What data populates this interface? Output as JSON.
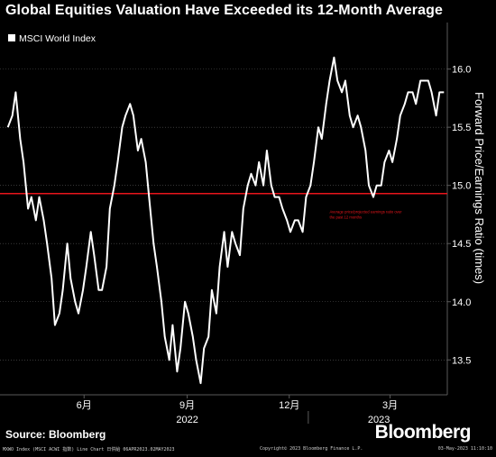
{
  "title": "Global Equities Valuation Have Exceeded its 12-Month Average",
  "source": "Source: Bloomberg",
  "brand": "Bloomberg",
  "footer": {
    "left": "MXWO Index (MSCI ACWI 指数) Line Chart 日供給 06APR2023.02MAY2023",
    "middle": "Copyright© 2023 Bloomberg Finance L.P.",
    "right": "03-May-2023 11:10:10"
  },
  "colors": {
    "background": "#000000",
    "line": "#ffffff",
    "average": "#e8151b",
    "grid": "#5a5a5a"
  },
  "chart_data": {
    "type": "line",
    "legend": {
      "position": "top-left"
    },
    "series": [
      {
        "name": "MSCI World Index",
        "x": [
          "2022-04-08",
          "2022-04-12",
          "2022-04-15",
          "2022-04-19",
          "2022-04-22",
          "2022-04-26",
          "2022-04-29",
          "2022-05-03",
          "2022-05-06",
          "2022-05-10",
          "2022-05-13",
          "2022-05-17",
          "2022-05-20",
          "2022-05-24",
          "2022-05-27",
          "2022-05-31",
          "2022-06-03",
          "2022-06-07",
          "2022-06-10",
          "2022-06-14",
          "2022-06-17",
          "2022-06-21",
          "2022-06-24",
          "2022-06-28",
          "2022-07-01",
          "2022-07-05",
          "2022-07-08",
          "2022-07-12",
          "2022-07-15",
          "2022-07-19",
          "2022-07-22",
          "2022-07-26",
          "2022-07-29",
          "2022-08-02",
          "2022-08-05",
          "2022-08-09",
          "2022-08-12",
          "2022-08-16",
          "2022-08-19",
          "2022-08-23",
          "2022-08-26",
          "2022-08-30",
          "2022-09-02",
          "2022-09-06",
          "2022-09-09",
          "2022-09-13",
          "2022-09-16",
          "2022-09-20",
          "2022-09-23",
          "2022-09-27",
          "2022-09-30",
          "2022-10-04",
          "2022-10-07",
          "2022-10-11",
          "2022-10-14",
          "2022-10-18",
          "2022-10-21",
          "2022-10-25",
          "2022-10-28",
          "2022-11-01",
          "2022-11-04",
          "2022-11-08",
          "2022-11-11",
          "2022-11-15",
          "2022-11-18",
          "2022-11-22",
          "2022-11-25",
          "2022-11-29",
          "2022-12-02",
          "2022-12-06",
          "2022-12-09",
          "2022-12-13",
          "2022-12-16",
          "2022-12-20",
          "2022-12-23",
          "2022-12-27",
          "2022-12-30",
          "2023-01-03",
          "2023-01-06",
          "2023-01-10",
          "2023-01-13",
          "2023-01-17",
          "2023-01-20",
          "2023-01-24",
          "2023-01-27",
          "2023-01-31",
          "2023-02-03",
          "2023-02-07",
          "2023-02-10",
          "2023-02-14",
          "2023-02-17",
          "2023-02-21",
          "2023-02-24",
          "2023-02-28",
          "2023-03-03",
          "2023-03-07",
          "2023-03-10",
          "2023-03-14",
          "2023-03-17",
          "2023-03-21",
          "2023-03-24",
          "2023-03-28",
          "2023-03-31",
          "2023-04-04",
          "2023-04-07",
          "2023-04-11",
          "2023-04-14",
          "2023-04-18",
          "2023-04-21",
          "2023-04-25",
          "2023-04-28",
          "2023-05-02"
        ],
        "values": [
          15.5,
          15.6,
          15.8,
          15.4,
          15.2,
          14.8,
          14.9,
          14.7,
          14.9,
          14.7,
          14.5,
          14.2,
          13.8,
          13.9,
          14.1,
          14.5,
          14.2,
          14.0,
          13.9,
          14.1,
          14.3,
          14.6,
          14.4,
          14.1,
          14.1,
          14.3,
          14.8,
          15.0,
          15.2,
          15.5,
          15.6,
          15.7,
          15.6,
          15.3,
          15.4,
          15.2,
          14.9,
          14.5,
          14.3,
          14.0,
          13.7,
          13.5,
          13.8,
          13.4,
          13.6,
          14.0,
          13.9,
          13.7,
          13.5,
          13.3,
          13.6,
          13.7,
          14.1,
          13.9,
          14.3,
          14.6,
          14.3,
          14.6,
          14.5,
          14.4,
          14.8,
          15.0,
          15.1,
          15.0,
          15.2,
          15.0,
          15.3,
          15.0,
          14.9,
          14.9,
          14.8,
          14.7,
          14.6,
          14.7,
          14.7,
          14.6,
          14.9,
          15.0,
          15.2,
          15.5,
          15.4,
          15.7,
          15.9,
          16.1,
          15.9,
          15.8,
          15.9,
          15.6,
          15.5,
          15.6,
          15.5,
          15.3,
          15.0,
          14.9,
          15.0,
          15.0,
          15.2,
          15.3,
          15.2,
          15.4,
          15.6,
          15.7,
          15.8,
          15.8,
          15.7,
          15.9,
          15.9,
          15.9,
          15.8,
          15.6,
          15.8,
          15.8
        ]
      },
      {
        "name": "Average price/projected earnings ratio over the past 12 months",
        "values": [
          14.93
        ]
      }
    ],
    "x_ticks": [
      "6月",
      "9月",
      "12月",
      "3月"
    ],
    "x_tick_dates": [
      "2022-06-15",
      "2022-09-15",
      "2022-12-15",
      "2023-03-15"
    ],
    "year_labels": [
      "2022",
      "2023"
    ],
    "year_label_dates": [
      "2022-09-15",
      "2023-03-05"
    ],
    "year_divider_date": "2023-01-01",
    "x_range": [
      "2022-04-01",
      "2023-05-05"
    ],
    "y_ticks": [
      13.5,
      14.0,
      14.5,
      15.0,
      15.5,
      16.0
    ],
    "tick_labels": [
      "13.5",
      "14.0",
      "14.5",
      "15.0",
      "15.5",
      "16.0"
    ],
    "ylim": [
      13.2,
      16.4
    ],
    "ylabel": "Forward Price/Earnings Ratio (times)",
    "grid": "horizontal"
  }
}
